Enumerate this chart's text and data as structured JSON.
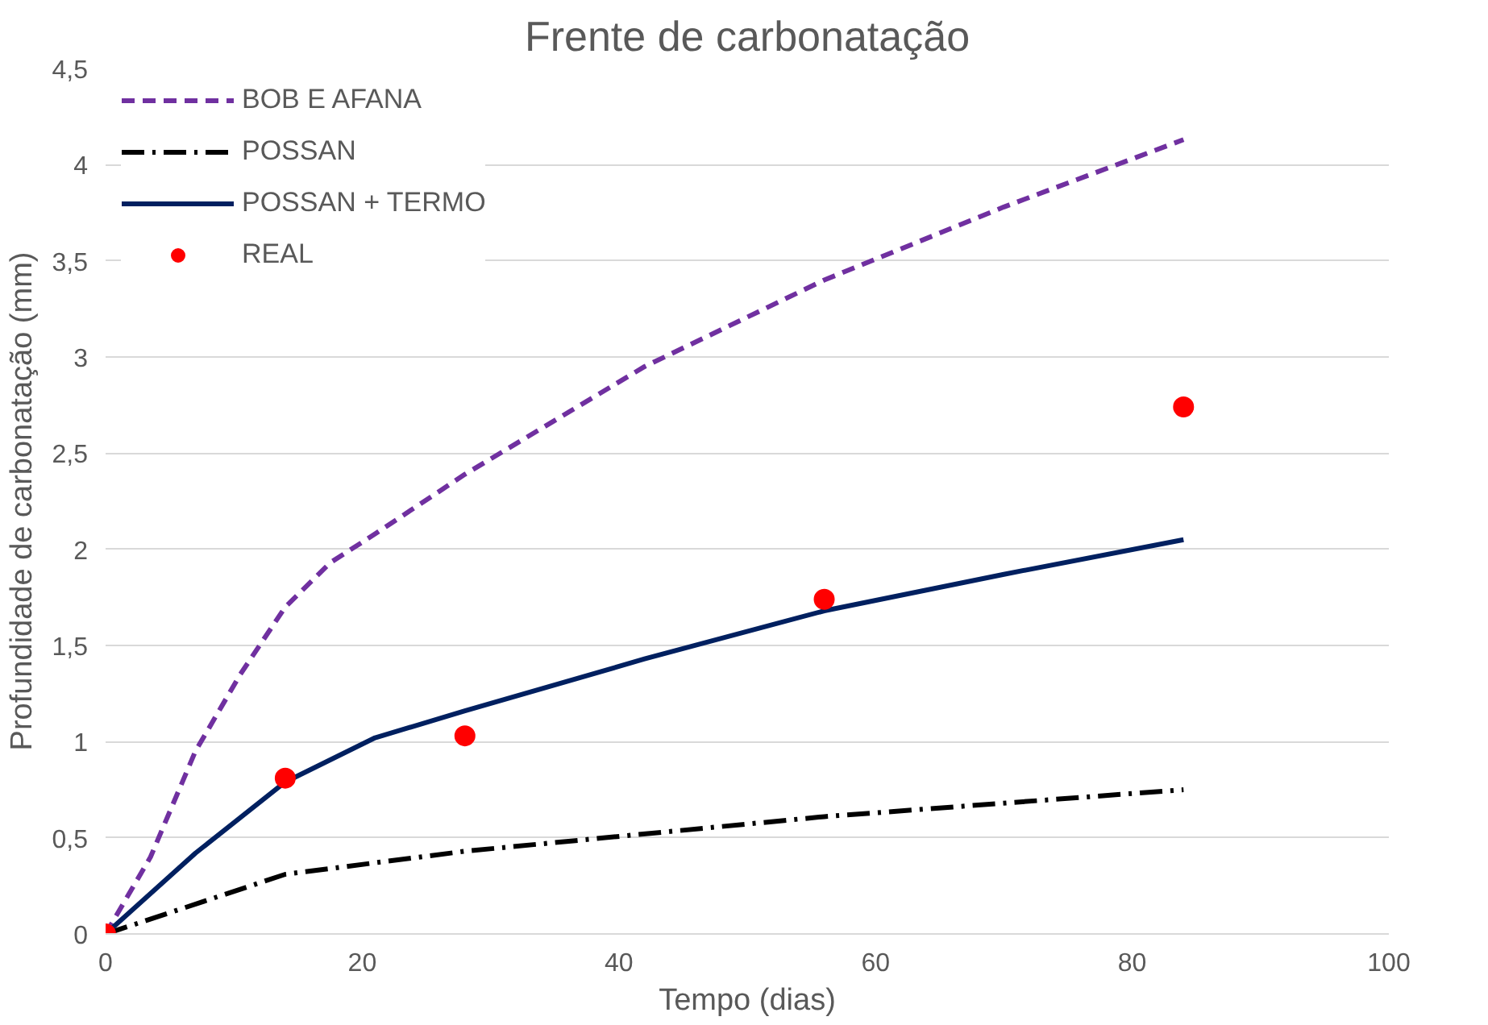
{
  "chart_data": {
    "type": "line",
    "title": "Frente de carbonatação",
    "xlabel": "Tempo (dias)",
    "ylabel": "Profundidade de carbonatação (mm)",
    "xlim": [
      0,
      100
    ],
    "xticks": [
      0,
      20,
      40,
      60,
      80,
      100
    ],
    "ylim": [
      0,
      4.5
    ],
    "yticks": [
      0,
      {
        "value": 0.5,
        "label": "0,5"
      },
      1,
      {
        "value": 1.5,
        "label": "1,5"
      },
      2,
      {
        "value": 2.5,
        "label": "2,5"
      },
      3,
      {
        "value": 3.5,
        "label": "3,5"
      },
      4,
      {
        "value": 4.5,
        "label": "4,5"
      }
    ],
    "grid": "y",
    "legend": "top left",
    "series": [
      {
        "name": "BOB E AFANA",
        "color": "#7030a0",
        "line_style": "dashed",
        "x": [
          0,
          3.5,
          7,
          10.5,
          14,
          17.5,
          21,
          28,
          42,
          56,
          70,
          84
        ],
        "values": [
          0,
          0.4,
          0.95,
          1.35,
          1.7,
          1.93,
          2.08,
          2.39,
          2.95,
          3.4,
          3.78,
          4.13
        ]
      },
      {
        "name": "POSSAN",
        "color": "#000000",
        "line_style": "dashdot",
        "x": [
          0,
          14,
          28,
          56,
          84
        ],
        "values": [
          0,
          0.31,
          0.43,
          0.61,
          0.75
        ]
      },
      {
        "name": "POSSAN + TERMO",
        "color": "#002060",
        "line_style": "solid",
        "x": [
          0,
          7,
          14,
          21,
          28,
          42,
          56,
          70,
          84
        ],
        "values": [
          0,
          0.42,
          0.79,
          1.02,
          1.16,
          1.43,
          1.68,
          1.87,
          2.05
        ]
      },
      {
        "name": "REAL",
        "type": "scatter",
        "marker": "circle",
        "color": "#ff0000",
        "x": [
          0,
          14,
          28,
          56,
          84
        ],
        "values": [
          0,
          0.81,
          1.03,
          1.74,
          2.74
        ]
      }
    ]
  }
}
